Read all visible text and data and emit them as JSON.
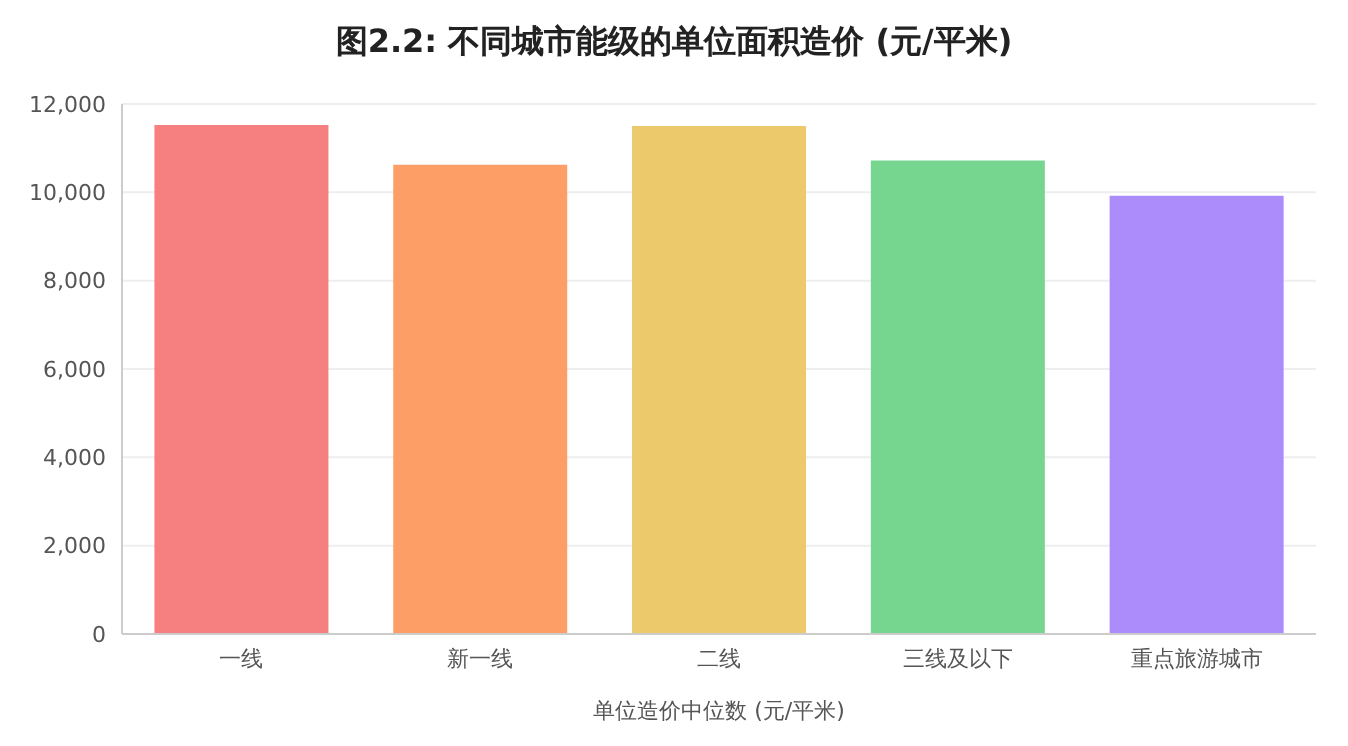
{
  "chart_data": {
    "type": "bar",
    "title": "图2.2: 不同城市能级的单位面积造价 (元/平米)",
    "xlabel": "单位造价中位数 (元/平米)",
    "categories": [
      "一线",
      "新一线",
      "二线",
      "三线及以下",
      "重点旅游城市"
    ],
    "values": [
      11500,
      10600,
      11480,
      10700,
      9900
    ],
    "colors": [
      "#f68080",
      "#fc9e66",
      "#ecc96a",
      "#76d58f",
      "#ab8cfa"
    ],
    "ylim": [
      0,
      12000
    ],
    "yticks": [
      0,
      {
        "value": 2000,
        "label": "2,000"
      },
      {
        "value": 4000,
        "label": "4,000"
      },
      {
        "value": 6000,
        "label": "6,000"
      },
      {
        "value": 8000,
        "label": "8,000"
      },
      {
        "value": 10000,
        "label": "10,000"
      },
      {
        "value": 12000,
        "label": "12,000"
      }
    ],
    "grid": "y"
  }
}
